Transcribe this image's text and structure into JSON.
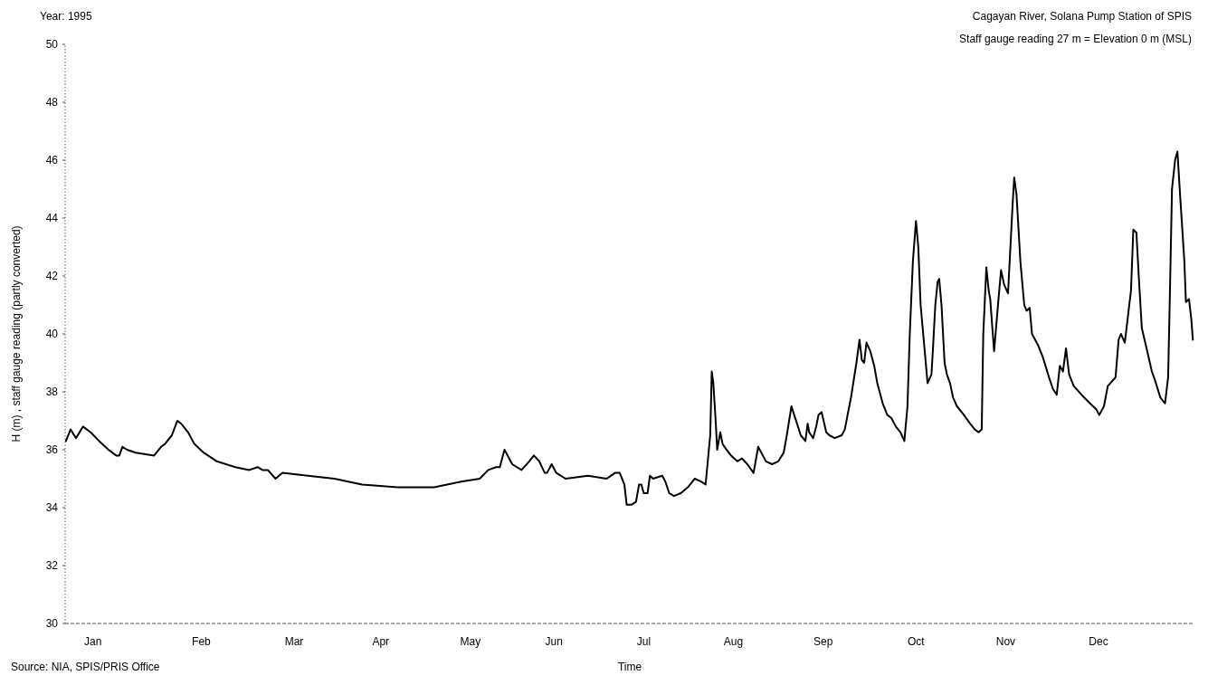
{
  "chart_data": {
    "type": "line",
    "title": "Year: 1995",
    "subtitle": "Cagayan River, Solana Pump Station of SPIS",
    "xlabel": "Time",
    "ylabel": "H (m) , staff gauge reading (partly converted)",
    "annotations": [
      "Staff gauge reading 27 m = Elevation 0 m (MSL)",
      "Source: NIA, SPIS/PRIS Office"
    ],
    "xlim": [
      "1995-01-01",
      "1996-01-01"
    ],
    "xticks": [
      {
        "value": "1995-01-10",
        "label": "Jan"
      },
      {
        "value": "1995-02-14",
        "label": "Feb"
      },
      {
        "value": "1995-03-16",
        "label": "Mar"
      },
      {
        "value": "1995-04-13",
        "label": "Apr"
      },
      {
        "value": "1995-05-12",
        "label": "May"
      },
      {
        "value": "1995-06-08",
        "label": "Jun"
      },
      {
        "value": "1995-07-07",
        "label": "Jul"
      },
      {
        "value": "1995-08-05",
        "label": "Aug"
      },
      {
        "value": "1995-09-03",
        "label": "Sep"
      },
      {
        "value": "1995-10-03",
        "label": "Oct"
      },
      {
        "value": "1995-11-01",
        "label": "Nov"
      },
      {
        "value": "1995-12-01",
        "label": "Dec"
      }
    ],
    "ylim": [
      30,
      50
    ],
    "yticks": [
      30,
      32,
      34,
      36,
      38,
      40,
      42,
      44,
      46,
      48,
      50
    ],
    "grid": false,
    "marker": "none",
    "line_style": "solid",
    "series": [
      {
        "color": "#000000",
        "x": [
          "1995-01-01T06:00",
          "1995-01-02T18:00",
          "1995-01-04T12:00",
          "1995-01-06T18:00",
          "1995-01-09T06:00",
          "1995-01-12T00:00",
          "1995-01-15T00:00",
          "1995-01-17T12:00",
          "1995-01-18T12:00",
          "1995-01-19T12:00",
          "1995-01-21T00:00",
          "1995-01-23T18:00",
          "1995-01-29T18:00",
          "1995-02-01T00:00",
          "1995-02-02T06:00",
          "1995-02-04T12:00",
          "1995-02-06T06:00",
          "1995-02-07T12:00",
          "1995-02-09T18:00",
          "1995-02-11T18:00",
          "1995-02-14T18:00",
          "1995-02-19T00:00",
          "1995-02-25T00:00",
          "1995-03-01T12:00",
          "1995-03-04T06:00",
          "1995-03-05T18:00",
          "1995-03-07T12:00",
          "1995-03-10T00:00",
          "1995-03-12T06:00",
          "1995-03-20T12:00",
          "1995-03-29T00:00",
          "1995-04-07T00:00",
          "1995-04-18T12:00",
          "1995-04-27T12:00",
          "1995-04-30T06:00",
          "1995-05-09T00:00",
          "1995-05-15T00:00",
          "1995-05-17T18:00",
          "1995-05-20T06:00",
          "1995-05-21T12:00",
          "1995-05-23T00:00",
          "1995-05-25T12:00",
          "1995-05-28T12:00",
          "1995-05-31T00:00",
          "1995-06-01T12:00",
          "1995-06-03T06:00",
          "1995-06-05T00:00",
          "1995-06-05T18:00",
          "1995-06-07T06:00",
          "1995-06-08T18:00",
          "1995-06-11T18:00",
          "1995-06-19T00:00",
          "1995-06-25T00:00",
          "1995-06-27T18:00",
          "1995-06-29T06:00",
          "1995-06-30T18:00",
          "1995-07-01T12:00",
          "1995-07-03T00:00",
          "1995-07-04T12:00",
          "1995-07-05T12:00",
          "1995-07-06T06:00",
          "1995-07-07T00:00",
          "1995-07-08T06:00",
          "1995-07-09T00:00",
          "1995-07-10T00:00",
          "1995-07-13T00:00",
          "1995-07-14T00:00",
          "1995-07-15T06:00",
          "1995-07-16T18:00",
          "1995-07-19T00:00",
          "1995-07-21T06:00",
          "1995-07-23T12:00",
          "1995-07-25T12:00",
          "1995-07-27T00:00",
          "1995-07-28T12:00",
          "1995-07-29T00:00",
          "1995-07-29T12:00",
          "1995-07-30T06:00",
          "1995-07-30T18:00",
          "1995-07-31T18:00",
          "1995-08-01T12:00",
          "1995-08-02T18:00",
          "1995-08-04T06:00",
          "1995-08-06T06:00",
          "1995-08-07T18:00",
          "1995-08-09T12:00",
          "1995-08-11T12:00",
          "1995-08-13T00:00",
          "1995-08-14T12:00",
          "1995-08-15T12:00",
          "1995-08-17T12:00",
          "1995-08-19T12:00",
          "1995-08-21T06:00",
          "1995-08-22T06:00",
          "1995-08-23T18:00",
          "1995-08-25T06:00",
          "1995-08-26T18:00",
          "1995-08-28T06:00",
          "1995-08-29T00:00",
          "1995-08-29T12:00",
          "1995-08-30T18:00",
          "1995-08-31T18:00",
          "1995-09-01T12:00",
          "1995-09-02T12:00",
          "1995-09-04T00:00",
          "1995-09-05T00:00",
          "1995-09-06T18:00",
          "1995-09-09T00:00",
          "1995-09-10T00:00",
          "1995-09-11T06:00",
          "1995-09-12T00:00",
          "1995-09-13T18:00",
          "1995-09-14T18:00",
          "1995-09-15T12:00",
          "1995-09-16T06:00",
          "1995-09-17T00:00",
          "1995-09-18T06:00",
          "1995-09-19T12:00",
          "1995-09-20T12:00",
          "1995-09-22T06:00",
          "1995-09-23T18:00",
          "1995-09-25T00:00",
          "1995-09-26T12:00",
          "1995-09-28T00:00",
          "1995-09-29T06:00",
          "1995-09-30T06:00",
          "1995-10-01T00:00",
          "1995-10-02T00:00",
          "1995-10-03T00:00",
          "1995-10-03T18:00",
          "1995-10-04T12:00",
          "1995-10-05T12:00",
          "1995-10-06T18:00",
          "1995-10-08T00:00",
          "1995-10-08T12:00",
          "1995-10-09T06:00",
          "1995-10-10T00:00",
          "1995-10-10T12:00",
          "1995-10-11T06:00",
          "1995-10-12T06:00",
          "1995-10-13T00:00",
          "1995-10-14T00:00",
          "1995-10-15T00:00",
          "1995-10-16T06:00",
          "1995-10-18T12:00",
          "1995-10-20T12:00",
          "1995-10-22T00:00",
          "1995-10-23T06:00",
          "1995-10-24T06:00",
          "1995-10-24T18:00",
          "1995-10-25T18:00",
          "1995-10-26T12:00",
          "1995-10-27T00:00",
          "1995-10-28T06:00",
          "1995-10-29T18:00",
          "1995-10-30T12:00",
          "1995-10-31T12:00",
          "1995-11-01T18:00",
          "1995-11-03T06:00",
          "1995-11-03T18:00",
          "1995-11-04T12:00",
          "1995-11-05T18:00",
          "1995-11-07T00:00",
          "1995-11-07T18:00",
          "1995-11-08T18:00",
          "1995-11-09T12:00",
          "1995-11-11T12:00",
          "1995-11-13T00:00",
          "1995-11-15T00:00",
          "1995-11-16T06:00",
          "1995-11-17T12:00",
          "1995-11-18T12:00",
          "1995-11-19T12:00",
          "1995-11-20T12:00",
          "1995-11-21T12:00",
          "1995-11-23T00:00",
          "1995-11-25T12:00",
          "1995-11-28T06:00",
          "1995-11-30T06:00",
          "1995-12-01T06:00",
          "1995-12-02T18:00",
          "1995-12-04T00:00",
          "1995-12-06T12:00",
          "1995-12-07T12:00",
          "1995-12-08T06:00",
          "1995-12-09T12:00",
          "1995-12-10T12:00",
          "1995-12-11T12:00",
          "1995-12-12T06:00",
          "1995-12-13T06:00",
          "1995-12-14T00:00",
          "1995-12-15T00:00",
          "1995-12-16T18:00",
          "1995-12-18T06:00",
          "1995-12-19T06:00",
          "1995-12-21T00:00",
          "1995-12-22T12:00",
          "1995-12-23T12:00",
          "1995-12-24T00:00",
          "1995-12-24T18:00",
          "1995-12-25T18:00",
          "1995-12-26T12:00",
          "1995-12-27T06:00",
          "1995-12-28T18:00",
          "1995-12-29T06:00",
          "1995-12-30T06:00",
          "1995-12-31T00:00",
          "1995-12-31T12:00"
        ],
        "values": [
          36.3,
          36.7,
          36.4,
          36.8,
          36.6,
          36.3,
          36.0,
          35.8,
          35.8,
          36.1,
          36.0,
          35.9,
          35.8,
          36.1,
          36.2,
          36.5,
          37.0,
          36.9,
          36.6,
          36.2,
          35.9,
          35.6,
          35.4,
          35.3,
          35.4,
          35.3,
          35.3,
          35.0,
          35.2,
          35.1,
          35.0,
          34.8,
          34.7,
          34.7,
          34.7,
          34.9,
          35.0,
          35.3,
          35.4,
          35.4,
          36.0,
          35.5,
          35.3,
          35.6,
          35.8,
          35.6,
          35.2,
          35.2,
          35.5,
          35.2,
          35.0,
          35.1,
          35.0,
          35.2,
          35.2,
          34.8,
          34.1,
          34.1,
          34.2,
          34.8,
          34.8,
          34.5,
          34.5,
          35.1,
          35.0,
          35.1,
          34.9,
          34.5,
          34.4,
          34.5,
          34.7,
          35.0,
          34.9,
          34.8,
          36.5,
          38.7,
          38.3,
          37.0,
          36.0,
          36.6,
          36.2,
          36.0,
          35.8,
          35.6,
          35.7,
          35.5,
          35.2,
          36.1,
          35.8,
          35.6,
          35.5,
          35.6,
          35.9,
          36.5,
          37.5,
          37.0,
          36.5,
          36.3,
          36.9,
          36.6,
          36.4,
          36.8,
          37.2,
          37.3,
          36.6,
          36.5,
          36.4,
          36.5,
          36.7,
          37.4,
          37.8,
          39.0,
          39.8,
          39.1,
          39.0,
          39.7,
          39.4,
          38.9,
          38.3,
          37.6,
          37.2,
          37.1,
          36.8,
          36.6,
          36.3,
          37.5,
          40.0,
          42.5,
          43.9,
          43.0,
          41.0,
          39.8,
          38.3,
          38.6,
          39.5,
          41.0,
          41.8,
          41.9,
          41.0,
          39.0,
          38.6,
          38.3,
          37.8,
          37.5,
          37.2,
          36.9,
          36.7,
          36.6,
          36.7,
          40.0,
          42.3,
          41.5,
          41.2,
          39.4,
          41.3,
          42.2,
          41.7,
          41.4,
          44.5,
          45.4,
          44.8,
          42.5,
          41.0,
          40.8,
          40.9,
          40.0,
          39.6,
          39.2,
          38.5,
          38.1,
          37.9,
          38.9,
          38.7,
          39.5,
          38.6,
          38.2,
          37.9,
          37.6,
          37.4,
          37.2,
          37.5,
          38.2,
          38.5,
          39.8,
          40.0,
          39.7,
          40.6,
          41.5,
          43.6,
          43.5,
          42.0,
          40.2,
          39.4,
          38.7,
          38.4,
          37.8,
          37.6,
          38.5,
          41.0,
          45.0,
          46.0,
          46.3,
          45.0,
          42.5,
          41.1,
          41.2,
          40.5,
          39.8
        ]
      }
    ]
  }
}
